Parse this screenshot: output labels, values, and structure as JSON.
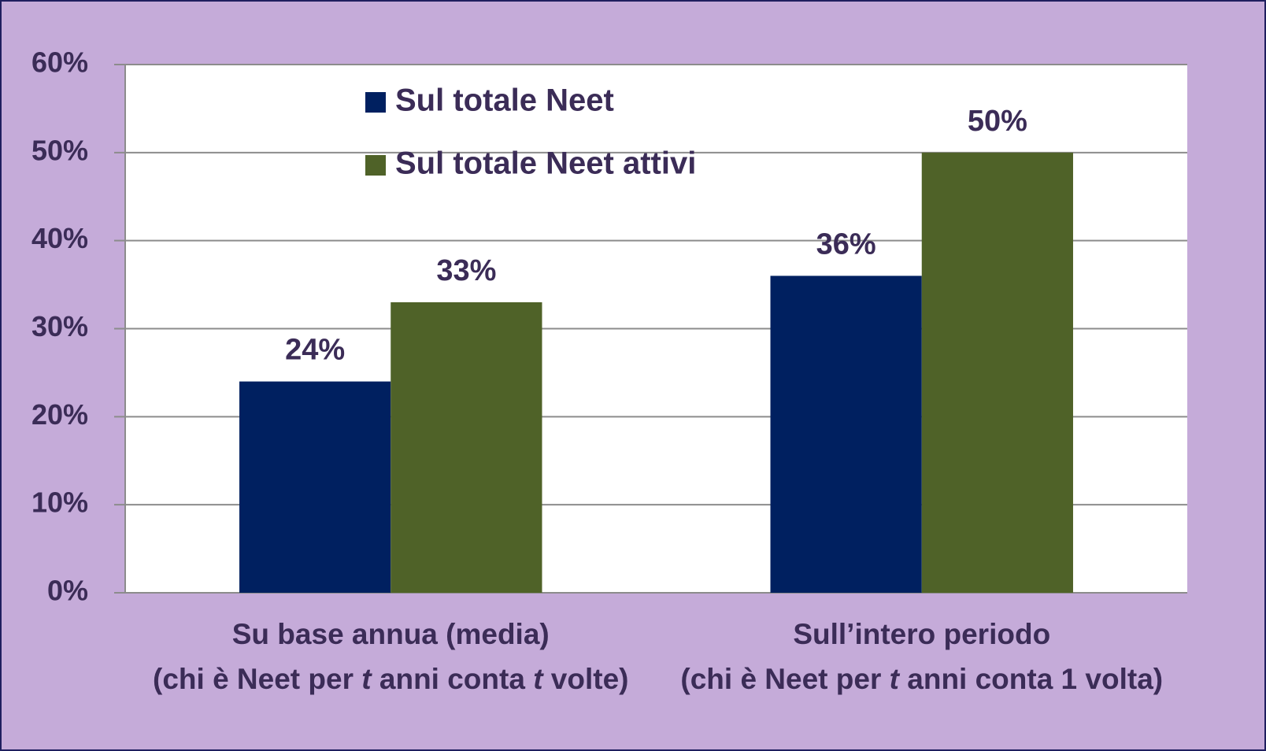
{
  "chart_data": {
    "type": "bar",
    "categories": [
      "Su base annua (media)\n(chi è Neet per t anni conta t volte)",
      "Sull’intero periodo\n(chi è Neet per t anni conta 1 volta)"
    ],
    "series": [
      {
        "name": "Sul totale Neet",
        "color": "#002060",
        "values": [
          24,
          36
        ],
        "value_labels": [
          "24%",
          "36%"
        ]
      },
      {
        "name": "Sul totale Neet attivi",
        "color": "#4f6228",
        "values": [
          33,
          50
        ],
        "value_labels": [
          "33%",
          "50%"
        ]
      }
    ],
    "ylim": [
      0,
      60
    ],
    "yticks": [
      {
        "value": 0,
        "label": "0%"
      },
      {
        "value": 10,
        "label": "10%"
      },
      {
        "value": 20,
        "label": "20%"
      },
      {
        "value": 30,
        "label": "30%"
      },
      {
        "value": 40,
        "label": "40%"
      },
      {
        "value": 50,
        "label": "50%"
      },
      {
        "value": 60,
        "label": "60%"
      }
    ],
    "grid": true,
    "legend": "top"
  }
}
